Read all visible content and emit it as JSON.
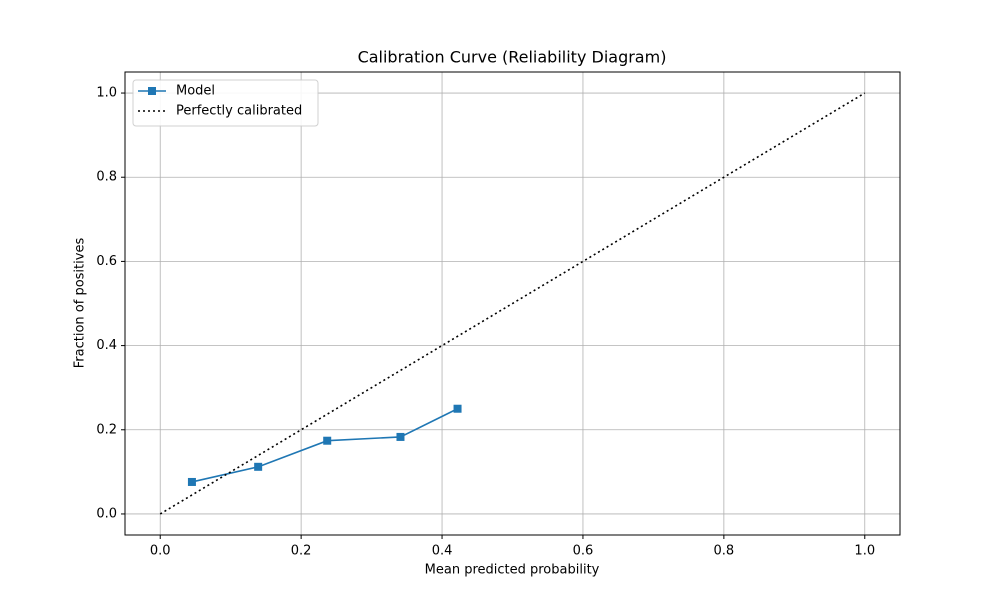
{
  "chart_data": {
    "type": "line",
    "title": "Calibration Curve (Reliability Diagram)",
    "x_label": "Mean predicted probability",
    "y_label": "Fraction of positives",
    "xlim": [
      -0.05,
      1.05
    ],
    "ylim": [
      -0.05,
      1.05
    ],
    "xticks": [
      {
        "value": 0,
        "label": "0.0"
      },
      0.2,
      0.4,
      0.6,
      0.8,
      {
        "value": 1,
        "label": "1.0"
      }
    ],
    "yticks": [
      {
        "value": 0,
        "label": "0.0"
      },
      0.2,
      0.4,
      0.6,
      0.8,
      {
        "value": 1,
        "label": "1.0"
      }
    ],
    "grid": true,
    "legend": "upper-left",
    "series": [
      {
        "name": "Model",
        "color": "#1f77b4",
        "linestyle": "solid",
        "marker": "square",
        "x": [
          0.045,
          0.139,
          0.237,
          0.341,
          0.422
        ],
        "values": [
          0.076,
          0.112,
          0.174,
          0.183,
          0.25
        ]
      },
      {
        "name": "Perfectly calibrated",
        "color": "#000000",
        "linestyle": "dotted",
        "marker": "none",
        "x": [
          0,
          1
        ],
        "values": [
          0,
          1
        ]
      }
    ]
  }
}
